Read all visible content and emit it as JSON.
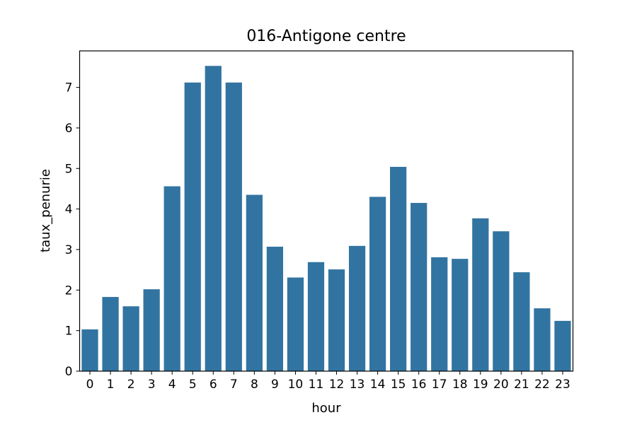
{
  "chart_data": {
    "type": "bar",
    "title": "016-Antigone centre",
    "xlabel": "hour",
    "ylabel": "taux_penurie",
    "categories": [
      "0",
      "1",
      "2",
      "3",
      "4",
      "5",
      "6",
      "7",
      "8",
      "9",
      "10",
      "11",
      "12",
      "13",
      "14",
      "15",
      "16",
      "17",
      "18",
      "19",
      "20",
      "21",
      "22",
      "23"
    ],
    "values": [
      1.03,
      1.83,
      1.6,
      2.02,
      4.56,
      7.12,
      7.53,
      7.12,
      4.35,
      3.07,
      2.31,
      2.69,
      2.51,
      3.09,
      4.3,
      5.04,
      4.15,
      2.81,
      2.77,
      3.77,
      3.45,
      2.44,
      1.55,
      1.24
    ],
    "ylim": [
      0,
      7.9
    ],
    "yticks": [
      0,
      1,
      2,
      3,
      4,
      5,
      6,
      7
    ],
    "grid": false,
    "bar_color": "#3274a1"
  }
}
